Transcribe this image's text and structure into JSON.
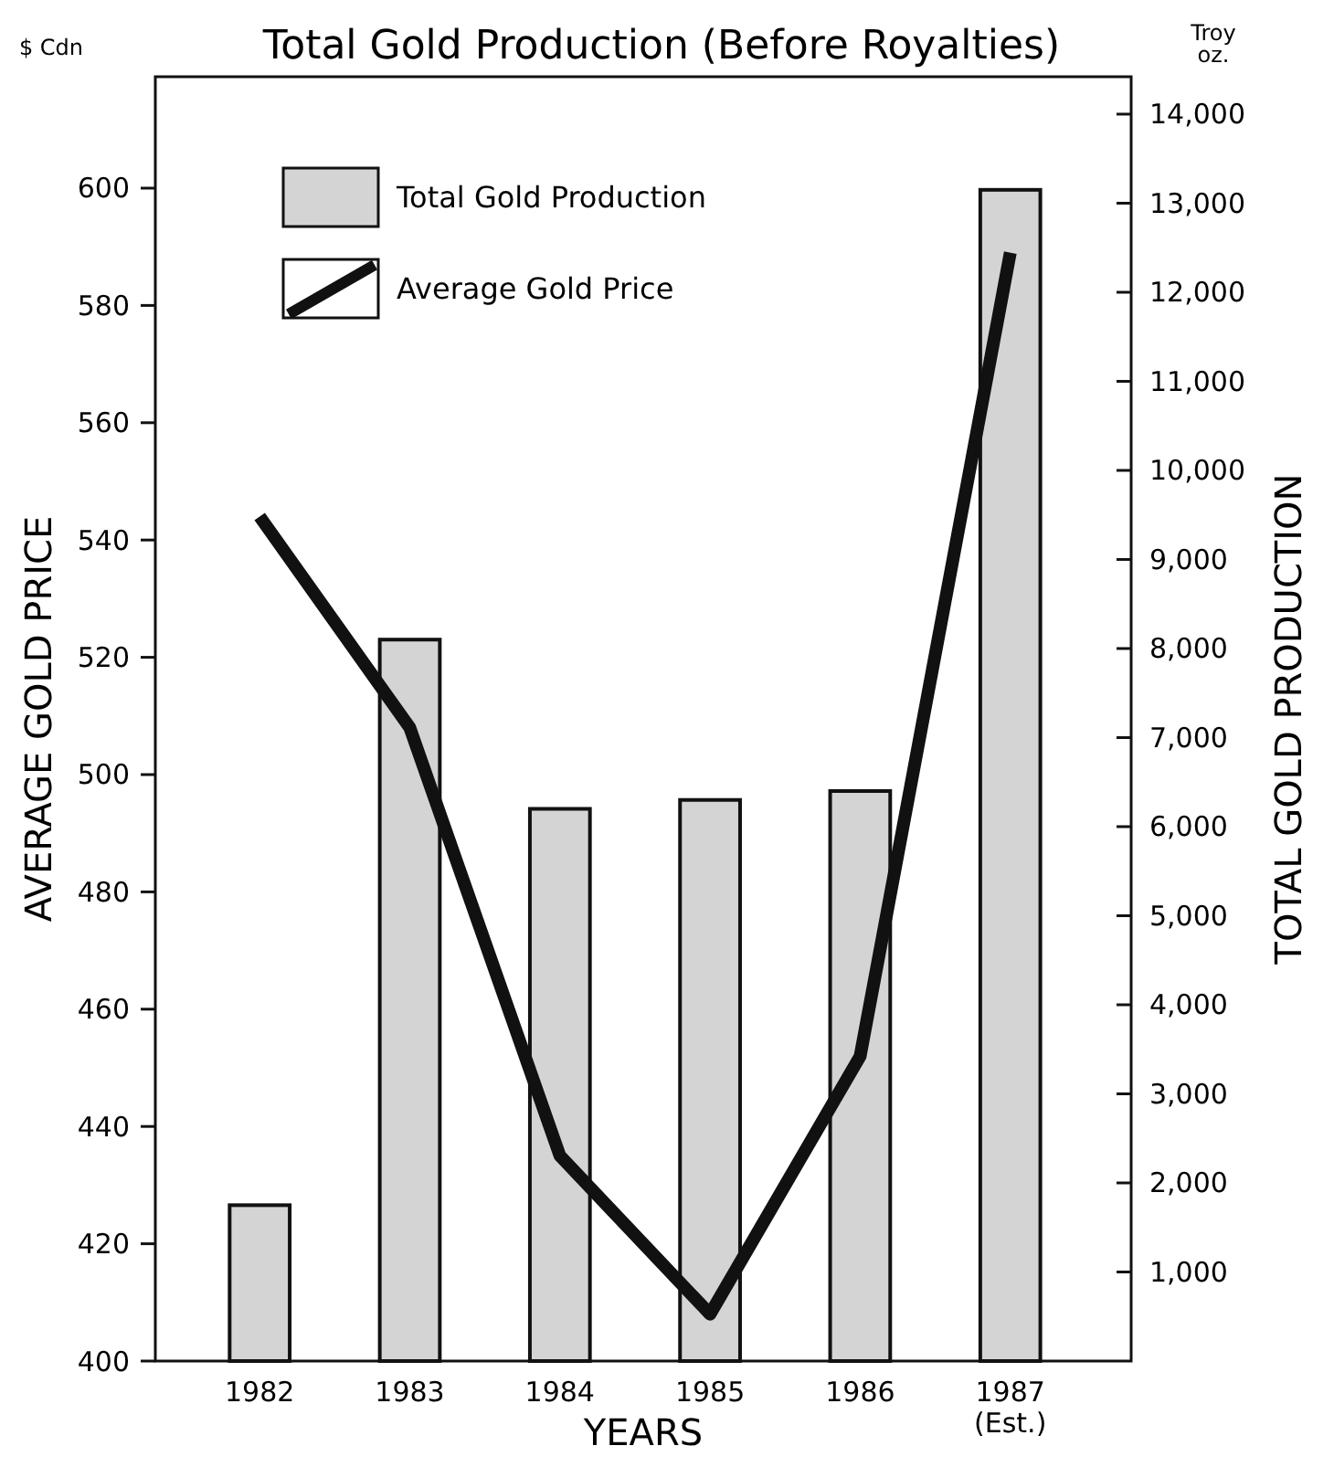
{
  "chart_data": {
    "type": "bar",
    "title": "Total Gold Production (Before Royalties)",
    "xlabel": "YEARS",
    "ylabel": "AVERAGE GOLD PRICE",
    "y2label": "TOTAL GOLD PRODUCTION",
    "annotations": [
      "$ Cdn",
      "Troy\noz."
    ],
    "categories": [
      "1982",
      "1983",
      "1984",
      "1985",
      "1986",
      "1987\n(Est.)"
    ],
    "series": [
      {
        "name": "Total Gold Production",
        "axis": "y2",
        "color": "#d4d4d4",
        "values": [
          1750,
          8100,
          6200,
          6300,
          6400,
          13150
        ]
      },
      {
        "name": "Average Gold Price",
        "type": "line",
        "color": "#111111",
        "values": [
          544,
          508,
          435,
          408,
          452,
          589
        ]
      }
    ],
    "ylim": [
      400,
      619
    ],
    "yticks": [
      400,
      420,
      440,
      460,
      480,
      500,
      520,
      540,
      560,
      580,
      600
    ],
    "y2lim": [
      0,
      14420
    ],
    "y2ticks": [
      {
        "value": 1000,
        "label": "1,000"
      },
      {
        "value": 2000,
        "label": "2,000"
      },
      {
        "value": 3000,
        "label": "3,000"
      },
      {
        "value": 4000,
        "label": "4,000"
      },
      {
        "value": 5000,
        "label": "5,000"
      },
      {
        "value": 6000,
        "label": "6,000"
      },
      {
        "value": 7000,
        "label": "7,000"
      },
      {
        "value": 8000,
        "label": "8,000"
      },
      {
        "value": 9000,
        "label": "9,000"
      },
      {
        "value": 10000,
        "label": "10,000"
      },
      {
        "value": 11000,
        "label": "11,000"
      },
      {
        "value": 12000,
        "label": "12,000"
      },
      {
        "value": 13000,
        "label": "13,000"
      },
      {
        "value": 14000,
        "label": "14,000"
      }
    ],
    "legend": "top left",
    "grid": false,
    "marker": "none",
    "line_style": "solid"
  }
}
